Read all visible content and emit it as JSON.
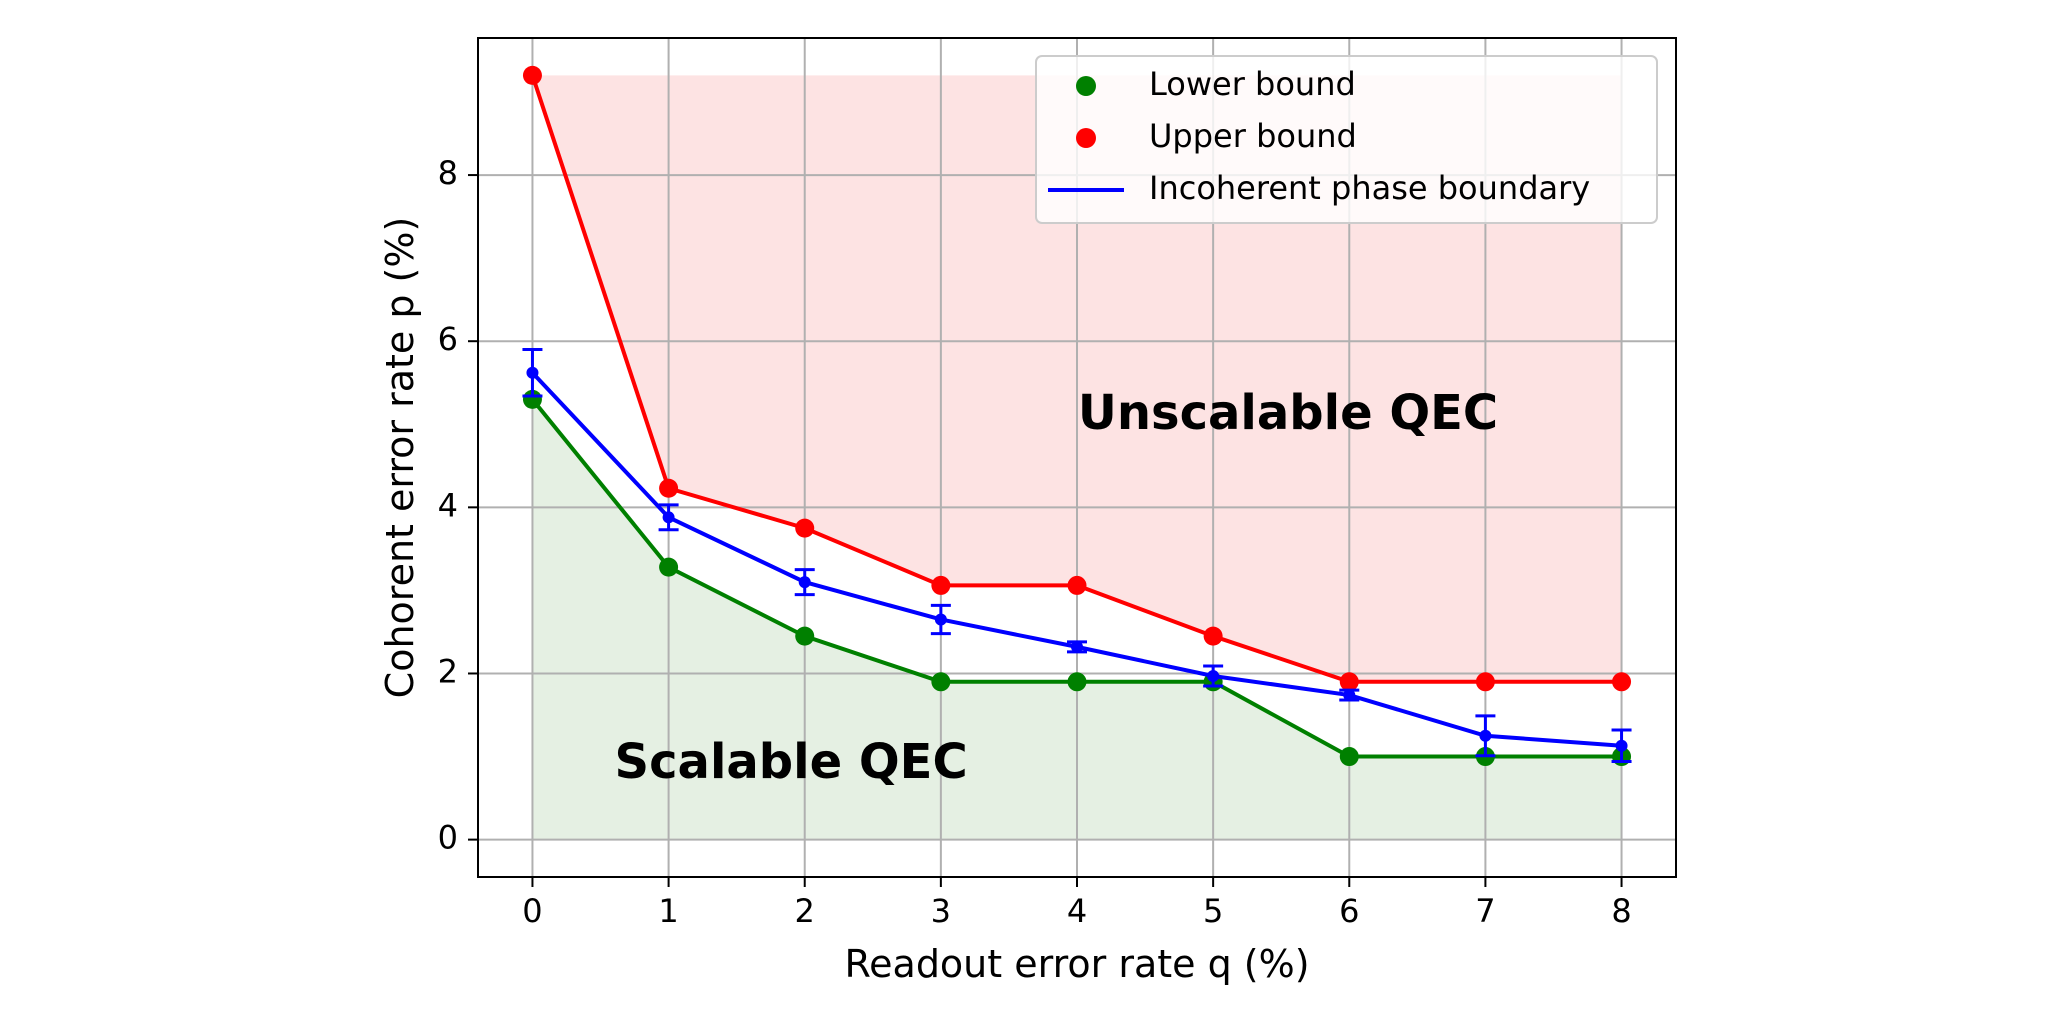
{
  "chart_data": {
    "type": "line",
    "title": "",
    "xlabel": "Readout error rate q (%)",
    "ylabel": "Cohorent error rate p (%)",
    "xlim": [
      -0.4,
      8.4
    ],
    "ylim": [
      -0.45,
      9.65
    ],
    "x_ticks": [
      0,
      1,
      2,
      3,
      4,
      5,
      6,
      7,
      8
    ],
    "y_ticks": [
      0,
      2,
      4,
      6,
      8
    ],
    "grid": true,
    "legend_position": "top-right",
    "series": [
      {
        "name": "Lower bound",
        "style": "markers-with-line",
        "color": "#008000",
        "fill_color": "#e5f0e3",
        "x": [
          0,
          1,
          2,
          3,
          4,
          5,
          6,
          7,
          8
        ],
        "y": [
          5.3,
          3.28,
          2.45,
          1.9,
          1.9,
          1.9,
          1.0,
          1.0,
          1.0
        ]
      },
      {
        "name": "Upper bound",
        "style": "markers-with-line",
        "color": "#ff0000",
        "fill_color": "#fde3e3",
        "x": [
          0,
          1,
          2,
          3,
          4,
          5,
          6,
          7,
          8
        ],
        "y": [
          9.2,
          4.23,
          3.75,
          3.06,
          3.06,
          2.45,
          1.9,
          1.9,
          1.9
        ]
      },
      {
        "name": "Incoherent phase boundary",
        "style": "line-with-errorbars",
        "color": "#0000ff",
        "x": [
          0,
          1,
          2,
          3,
          4,
          5,
          6,
          7,
          8
        ],
        "y": [
          5.62,
          3.88,
          3.1,
          2.65,
          2.32,
          1.97,
          1.74,
          1.25,
          1.13
        ],
        "yerr": [
          0.28,
          0.15,
          0.15,
          0.17,
          0.06,
          0.12,
          0.06,
          0.24,
          0.19
        ]
      }
    ],
    "annotations": [
      {
        "text": "Unscalable QEC",
        "x": 5.55,
        "y": 5.1
      },
      {
        "text": "Scalable QEC",
        "x": 1.9,
        "y": 0.9
      }
    ]
  }
}
